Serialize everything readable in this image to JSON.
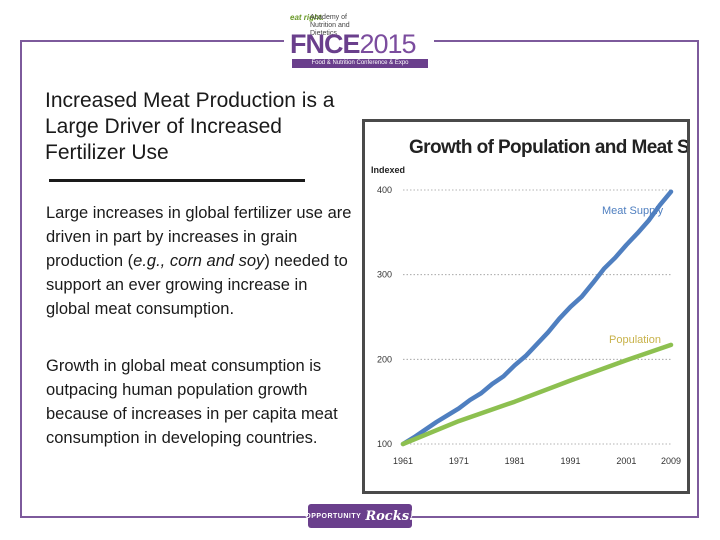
{
  "logo": {
    "mark": "eat right.",
    "academy": "Academy of Nutrition and Dietetics",
    "title": "FNCE",
    "year": "2015",
    "subtitle": "Food & Nutrition Conference & Expo"
  },
  "slide": {
    "heading": "Increased Meat Production is a Large Driver of Increased Fertilizer Use",
    "paragraph_1_part_1": "Large increases in global fertilizer use are driven in part by increases in grain production (",
    "paragraph_1_italic": "e.g., corn and soy",
    "paragraph_1_part_2": ") needed to support an ever growing increase in global meat consumption.",
    "paragraph_2": "Growth in global meat consumption is outpacing human population growth because of increases in per capita meat consumption in developing countries."
  },
  "footer": {
    "word": "OPPORTUNITY",
    "script": "Rocks!"
  },
  "chart_data": {
    "type": "line",
    "title": "Growth of Population and Meat Supply",
    "ylabel": "Indexed",
    "xlabel": "",
    "ylim": [
      100,
      400
    ],
    "yticks": [
      100,
      200,
      300,
      400
    ],
    "xticks": [
      1961,
      1971,
      1981,
      1991,
      2001,
      2009
    ],
    "xlim": [
      1961,
      2009
    ],
    "grid": true,
    "series": [
      {
        "name": "Meat Supply",
        "color": "#4f7fc0",
        "x": [
          1961,
          1963,
          1965,
          1967,
          1969,
          1971,
          1973,
          1975,
          1977,
          1979,
          1981,
          1983,
          1985,
          1987,
          1989,
          1991,
          1993,
          1995,
          1997,
          1999,
          2001,
          2003,
          2005,
          2007,
          2009
        ],
        "y": [
          100,
          108,
          117,
          126,
          134,
          142,
          152,
          160,
          171,
          180,
          193,
          204,
          218,
          232,
          248,
          262,
          274,
          290,
          307,
          320,
          335,
          349,
          364,
          382,
          398
        ]
      },
      {
        "name": "Population",
        "color": "#8dc050",
        "x": [
          1961,
          1971,
          1981,
          1991,
          2001,
          2009
        ],
        "y": [
          100,
          127,
          150,
          175,
          199,
          217
        ]
      }
    ]
  }
}
